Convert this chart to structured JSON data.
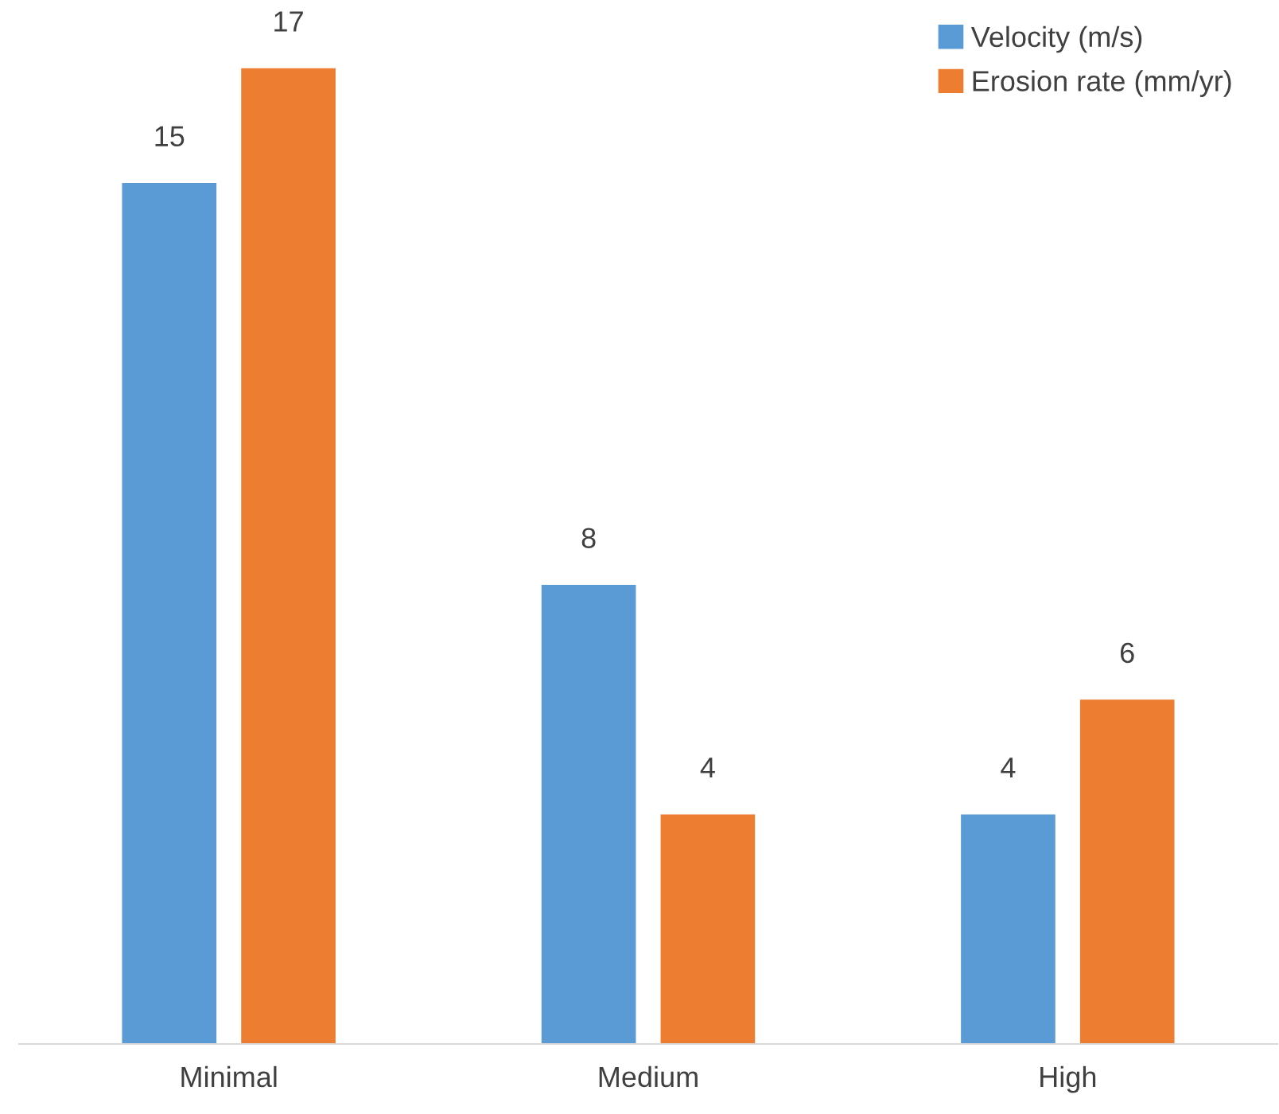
{
  "chart_data": {
    "type": "bar",
    "categories": [
      "Minimal",
      "Medium",
      "High"
    ],
    "series": [
      {
        "name": "Velocity (m/s)",
        "color": "#5b9bd5",
        "values": [
          15,
          8,
          4
        ]
      },
      {
        "name": "Erosion rate (mm/yr)",
        "color": "#ed7d31",
        "values": [
          17,
          4,
          6
        ]
      }
    ],
    "data_labels": true,
    "legend": "top right",
    "grid": false,
    "tick_labels": "x"
  }
}
